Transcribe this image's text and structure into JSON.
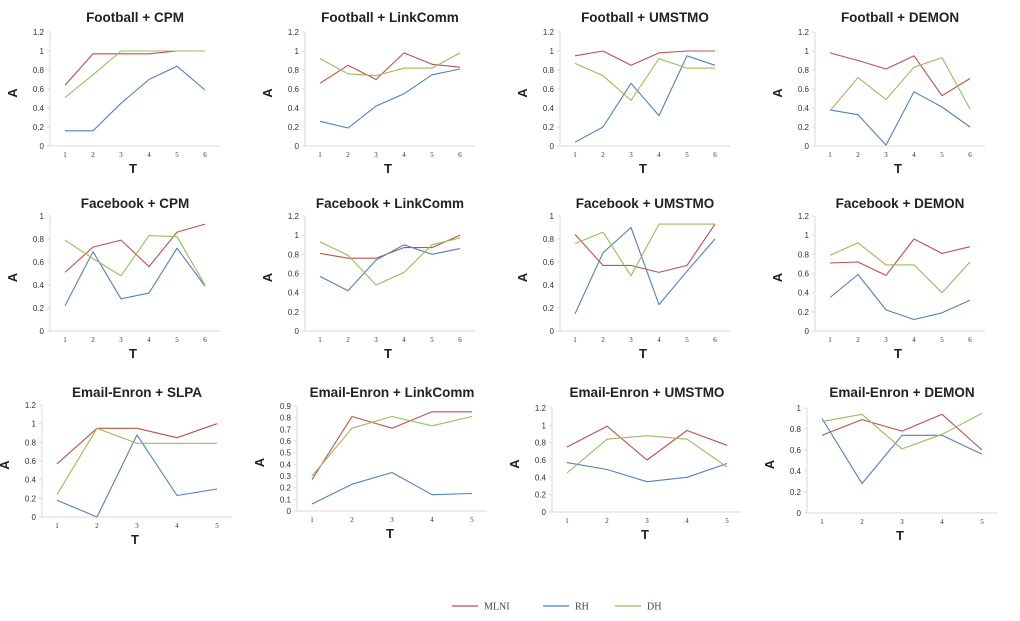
{
  "colors": {
    "MLNI": "#c0504d",
    "RH": "#4f81bd",
    "DH": "#9bbb59",
    "frame": "#d9d9d9"
  },
  "legend": {
    "placement": "bottom-center",
    "entries": [
      "MLNI",
      "RH",
      "DH"
    ]
  },
  "chart_data": [
    {
      "type": "line",
      "title": "Football + CPM",
      "xlabel": "T",
      "ylabel": "A",
      "categories": [
        "1",
        "2",
        "3",
        "4",
        "5",
        "6"
      ],
      "ylim": [
        0,
        1.2
      ],
      "yticks": [
        "0",
        "0.2",
        "0.4",
        "0.6",
        "0.8",
        "1",
        "1.2"
      ],
      "series": [
        {
          "name": "MLNI",
          "values": [
            0.64,
            0.97,
            0.97,
            0.97,
            1.0,
            1.0
          ]
        },
        {
          "name": "RH",
          "values": [
            0.16,
            0.16,
            0.45,
            0.7,
            0.84,
            0.59
          ]
        },
        {
          "name": "DH",
          "values": [
            0.51,
            0.75,
            1.0,
            1.0,
            1.0,
            1.0
          ]
        }
      ]
    },
    {
      "type": "line",
      "title": "Football + LinkComm",
      "xlabel": "T",
      "ylabel": "A",
      "categories": [
        "1",
        "2",
        "3",
        "4",
        "5",
        "6"
      ],
      "ylim": [
        0,
        1.2
      ],
      "yticks": [
        "0",
        "0.2",
        "0.4",
        "0.6",
        "0.8",
        "1",
        "1.2"
      ],
      "series": [
        {
          "name": "MLNI",
          "values": [
            0.66,
            0.85,
            0.7,
            0.98,
            0.86,
            0.83
          ]
        },
        {
          "name": "RH",
          "values": [
            0.26,
            0.19,
            0.42,
            0.55,
            0.75,
            0.81
          ]
        },
        {
          "name": "DH",
          "values": [
            0.92,
            0.76,
            0.74,
            0.82,
            0.82,
            0.98
          ]
        }
      ]
    },
    {
      "type": "line",
      "title": "Football + UMSTMO",
      "xlabel": "T",
      "ylabel": "A",
      "categories": [
        "1",
        "2",
        "3",
        "4",
        "5",
        "6"
      ],
      "ylim": [
        0,
        1.2
      ],
      "yticks": [
        "0",
        "0.2",
        "0.4",
        "0.6",
        "0.8",
        "1",
        "1.2"
      ],
      "series": [
        {
          "name": "MLNI",
          "values": [
            0.95,
            1.0,
            0.85,
            0.98,
            1.0,
            1.0
          ]
        },
        {
          "name": "RH",
          "values": [
            0.04,
            0.2,
            0.66,
            0.32,
            0.95,
            0.85
          ]
        },
        {
          "name": "DH",
          "values": [
            0.87,
            0.74,
            0.48,
            0.92,
            0.82,
            0.82
          ]
        }
      ]
    },
    {
      "type": "line",
      "title": "Football + DEMON",
      "xlabel": "T",
      "ylabel": "A",
      "categories": [
        "1",
        "2",
        "3",
        "4",
        "5",
        "6"
      ],
      "ylim": [
        0,
        1.2
      ],
      "yticks": [
        "0",
        "0.2",
        "0.4",
        "0.6",
        "0.8",
        "1",
        "1.2"
      ],
      "series": [
        {
          "name": "MLNI",
          "values": [
            0.98,
            0.9,
            0.81,
            0.95,
            0.53,
            0.71
          ]
        },
        {
          "name": "RH",
          "values": [
            0.38,
            0.33,
            0.01,
            0.57,
            0.41,
            0.2
          ]
        },
        {
          "name": "DH",
          "values": [
            0.37,
            0.72,
            0.49,
            0.83,
            0.93,
            0.39
          ]
        }
      ]
    },
    {
      "type": "line",
      "title": "Facebook + CPM",
      "xlabel": "T",
      "ylabel": "A",
      "categories": [
        "1",
        "2",
        "3",
        "4",
        "5",
        "6"
      ],
      "ylim": [
        0,
        1
      ],
      "yticks": [
        "0",
        "0.2",
        "0.4",
        "0.6",
        "0.8",
        "1"
      ],
      "series": [
        {
          "name": "MLNI",
          "values": [
            0.51,
            0.73,
            0.79,
            0.56,
            0.86,
            0.93
          ]
        },
        {
          "name": "RH",
          "values": [
            0.22,
            0.69,
            0.28,
            0.33,
            0.72,
            0.39
          ]
        },
        {
          "name": "DH",
          "values": [
            0.79,
            0.63,
            0.48,
            0.83,
            0.82,
            0.4
          ]
        }
      ]
    },
    {
      "type": "line",
      "title": "Facebook + LinkComm",
      "xlabel": "T",
      "ylabel": "A",
      "categories": [
        "1",
        "2",
        "3",
        "4",
        "5",
        "6"
      ],
      "ylim": [
        0,
        1.2
      ],
      "yticks": [
        "0",
        "0.2",
        "0.4",
        "0.6",
        "0.8",
        "1",
        "1.2"
      ],
      "series": [
        {
          "name": "MLNI",
          "values": [
            0.81,
            0.76,
            0.76,
            0.87,
            0.87,
            1.0
          ]
        },
        {
          "name": "RH",
          "values": [
            0.57,
            0.42,
            0.74,
            0.9,
            0.8,
            0.86
          ]
        },
        {
          "name": "DH",
          "values": [
            0.93,
            0.79,
            0.48,
            0.61,
            0.9,
            0.97
          ]
        }
      ]
    },
    {
      "type": "line",
      "title": "Facebook + UMSTMO",
      "xlabel": "T",
      "ylabel": "A",
      "categories": [
        "1",
        "2",
        "3",
        "4",
        "5",
        "6"
      ],
      "ylim": [
        0,
        1
      ],
      "yticks": [
        "0",
        "0.2",
        "0.4",
        "0.6",
        "0.8",
        "1"
      ],
      "series": [
        {
          "name": "MLNI",
          "values": [
            0.84,
            0.57,
            0.57,
            0.51,
            0.57,
            0.93
          ]
        },
        {
          "name": "RH",
          "values": [
            0.15,
            0.68,
            0.9,
            0.23,
            0.52,
            0.8
          ]
        },
        {
          "name": "DH",
          "values": [
            0.76,
            0.86,
            0.48,
            0.93,
            0.93,
            0.93
          ]
        }
      ]
    },
    {
      "type": "line",
      "title": "Facebook + DEMON",
      "xlabel": "T",
      "ylabel": "A",
      "categories": [
        "1",
        "2",
        "3",
        "4",
        "5",
        "6"
      ],
      "ylim": [
        0,
        1.2
      ],
      "yticks": [
        "0",
        "0.2",
        "0.4",
        "0.6",
        "0.8",
        "1",
        "1.2"
      ],
      "series": [
        {
          "name": "MLNI",
          "values": [
            0.71,
            0.72,
            0.58,
            0.96,
            0.81,
            0.88
          ]
        },
        {
          "name": "RH",
          "values": [
            0.35,
            0.59,
            0.22,
            0.12,
            0.19,
            0.32
          ]
        },
        {
          "name": "DH",
          "values": [
            0.79,
            0.92,
            0.69,
            0.69,
            0.4,
            0.72
          ]
        }
      ]
    },
    {
      "type": "line",
      "title": "Email-Enron + SLPA",
      "xlabel": "T",
      "ylabel": "A",
      "categories": [
        "1",
        "2",
        "3",
        "4",
        "5"
      ],
      "ylim": [
        0,
        1.2
      ],
      "yticks": [
        "0",
        "0.2",
        "0.4",
        "0.6",
        "0.8",
        "1",
        "1.2"
      ],
      "series": [
        {
          "name": "MLNI",
          "values": [
            0.57,
            0.95,
            0.95,
            0.85,
            1.0
          ]
        },
        {
          "name": "RH",
          "values": [
            0.18,
            0.0,
            0.88,
            0.23,
            0.3
          ]
        },
        {
          "name": "DH",
          "values": [
            0.24,
            0.95,
            0.79,
            0.79,
            0.79
          ]
        }
      ]
    },
    {
      "type": "line",
      "title": "Email-Enron + LinkComm",
      "xlabel": "T",
      "ylabel": "A",
      "categories": [
        "1",
        "2",
        "3",
        "4",
        "5"
      ],
      "ylim": [
        0,
        0.9
      ],
      "yticks": [
        "0",
        "0.1",
        "0.2",
        "0.3",
        "0.4",
        "0.5",
        "0.6",
        "0.7",
        "0.8",
        "0.9"
      ],
      "series": [
        {
          "name": "MLNI",
          "values": [
            0.27,
            0.81,
            0.71,
            0.85,
            0.85
          ]
        },
        {
          "name": "RH",
          "values": [
            0.06,
            0.23,
            0.33,
            0.14,
            0.15
          ]
        },
        {
          "name": "DH",
          "values": [
            0.3,
            0.71,
            0.81,
            0.73,
            0.81
          ]
        }
      ]
    },
    {
      "type": "line",
      "title": "Email-Enron + UMSTMO",
      "xlabel": "T",
      "ylabel": "A",
      "categories": [
        "1",
        "2",
        "3",
        "4",
        "5"
      ],
      "ylim": [
        0,
        1.2
      ],
      "yticks": [
        "0",
        "0.2",
        "0.4",
        "0.6",
        "0.8",
        "1",
        "1.2"
      ],
      "series": [
        {
          "name": "MLNI",
          "values": [
            0.75,
            0.99,
            0.6,
            0.94,
            0.77
          ]
        },
        {
          "name": "RH",
          "values": [
            0.57,
            0.49,
            0.35,
            0.4,
            0.56
          ]
        },
        {
          "name": "DH",
          "values": [
            0.45,
            0.84,
            0.88,
            0.84,
            0.52
          ]
        }
      ]
    },
    {
      "type": "line",
      "title": "Email-Enron + DEMON",
      "xlabel": "T",
      "ylabel": "A",
      "categories": [
        "1",
        "2",
        "3",
        "4",
        "5"
      ],
      "ylim": [
        0,
        1
      ],
      "yticks": [
        "0",
        "0.2",
        "0.4",
        "0.6",
        "0.8",
        "1"
      ],
      "series": [
        {
          "name": "MLNI",
          "values": [
            0.74,
            0.89,
            0.78,
            0.94,
            0.6
          ]
        },
        {
          "name": "RH",
          "values": [
            0.9,
            0.28,
            0.74,
            0.74,
            0.56
          ]
        },
        {
          "name": "DH",
          "values": [
            0.87,
            0.94,
            0.61,
            0.75,
            0.95
          ]
        }
      ]
    }
  ]
}
